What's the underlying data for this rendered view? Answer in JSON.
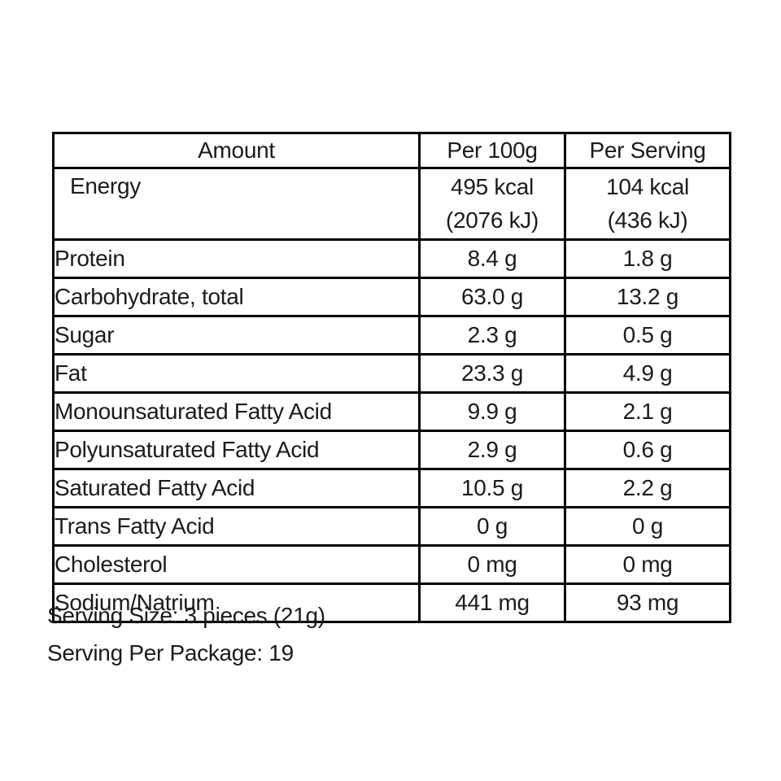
{
  "table": {
    "header": {
      "amount": "Amount",
      "per_100g": "Per 100g",
      "per_serving": "Per Serving"
    },
    "rows": [
      {
        "label": "Energy",
        "per_100g_line1": "495 kcal",
        "per_100g_line2": "(2076 kJ)",
        "per_serving_line1": "104 kcal",
        "per_serving_line2": "(436 kJ)"
      },
      {
        "label": "Protein",
        "per_100g": "8.4 g",
        "per_serving": "1.8 g"
      },
      {
        "label": "Carbohydrate, total",
        "per_100g": "63.0 g",
        "per_serving": "13.2 g"
      },
      {
        "label": "Sugar",
        "per_100g": "2.3 g",
        "per_serving": "0.5 g"
      },
      {
        "label": "Fat",
        "per_100g": "23.3 g",
        "per_serving": "4.9 g"
      },
      {
        "label": "Monounsaturated Fatty Acid",
        "per_100g": "9.9 g",
        "per_serving": "2.1 g"
      },
      {
        "label": "Polyunsaturated Fatty Acid",
        "per_100g": "2.9 g",
        "per_serving": "0.6 g"
      },
      {
        "label": "Saturated Fatty Acid",
        "per_100g": "10.5 g",
        "per_serving": "2.2 g"
      },
      {
        "label": "Trans Fatty Acid",
        "per_100g": "0 g",
        "per_serving": "0 g"
      },
      {
        "label": "Cholesterol",
        "per_100g": "0 mg",
        "per_serving": "0 mg"
      },
      {
        "label": "Sodium/Natrium",
        "per_100g": "441 mg",
        "per_serving": "93 mg"
      }
    ]
  },
  "footer": {
    "serving_size": "Serving Size: 3 pieces (21g)",
    "serving_per_package": "Serving Per Package: 19"
  },
  "colors": {
    "border": "#000000",
    "text": "#1b1b1b",
    "background": "#ffffff"
  }
}
